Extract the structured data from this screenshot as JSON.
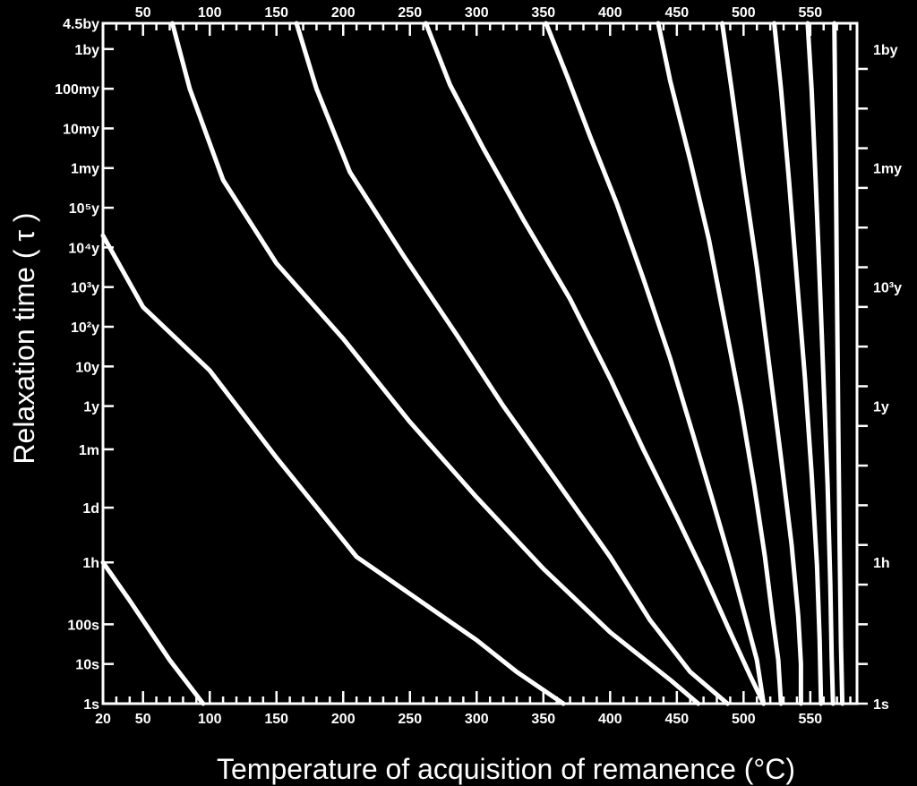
{
  "chart_data": {
    "type": "line",
    "xlabel": "Temperature of acquisition of remanence (°C)",
    "ylabel": "Relaxation time ( τ )",
    "xlim": [
      20,
      585
    ],
    "bottom_x_ticks": [
      20,
      50,
      100,
      150,
      200,
      250,
      300,
      350,
      400,
      450,
      500,
      550
    ],
    "top_x_ticks": [
      50,
      100,
      150,
      200,
      250,
      300,
      350,
      400,
      450,
      500,
      550
    ],
    "left_y_labels": [
      "4.5by",
      "1by",
      "100my",
      "10my",
      "1my",
      "10⁵y",
      "10⁴y",
      "10³y",
      "10²y",
      "10y",
      "1y",
      "1m",
      "1d",
      "1h",
      "100s",
      "10s",
      "1s"
    ],
    "right_y_labels": [
      "1by",
      "1my",
      "10³y",
      "1y",
      "1h",
      "1s"
    ],
    "y_unit": "log10 seconds",
    "y_ticks_log10s": [
      17.15,
      16.5,
      15.5,
      14.5,
      13.5,
      12.5,
      11.5,
      10.5,
      9.5,
      8.5,
      7.5,
      6.41,
      4.94,
      3.56,
      2,
      1,
      0
    ],
    "right_y_ticks_log10s": [
      16.5,
      13.5,
      10.5,
      7.5,
      3.56,
      0
    ],
    "series": [
      {
        "points": [
          [
            20,
            3.56
          ],
          [
            40,
            2.6
          ],
          [
            70,
            1.1
          ],
          [
            95,
            0
          ]
        ]
      },
      {
        "points": [
          [
            20,
            11.8
          ],
          [
            50,
            10
          ],
          [
            100,
            8.4
          ],
          [
            150,
            6.2
          ],
          [
            210,
            3.7
          ],
          [
            300,
            1.6
          ],
          [
            330,
            0.8
          ],
          [
            365,
            0
          ]
        ]
      },
      {
        "points": [
          [
            72,
            17.15
          ],
          [
            85,
            15.5
          ],
          [
            110,
            13.2
          ],
          [
            150,
            11.1
          ],
          [
            200,
            9.2
          ],
          [
            250,
            7.1
          ],
          [
            300,
            5.2
          ],
          [
            350,
            3.4
          ],
          [
            400,
            1.8
          ],
          [
            445,
            0.6
          ],
          [
            466,
            0
          ]
        ]
      },
      {
        "points": [
          [
            165,
            17.15
          ],
          [
            180,
            15.5
          ],
          [
            205,
            13.4
          ],
          [
            245,
            11.3
          ],
          [
            285,
            9.3
          ],
          [
            320,
            7.5
          ],
          [
            360,
            5.6
          ],
          [
            400,
            3.7
          ],
          [
            430,
            2.1
          ],
          [
            460,
            0.8
          ],
          [
            488,
            0
          ]
        ]
      },
      {
        "points": [
          [
            262,
            17.15
          ],
          [
            280,
            15.6
          ],
          [
            305,
            14
          ],
          [
            335,
            12.2
          ],
          [
            370,
            10.2
          ],
          [
            400,
            8.2
          ],
          [
            425,
            6.4
          ],
          [
            450,
            4.7
          ],
          [
            470,
            3.3
          ],
          [
            490,
            1.8
          ],
          [
            505,
            0.7
          ],
          [
            515,
            0
          ]
        ]
      },
      {
        "points": [
          [
            352,
            17.15
          ],
          [
            368,
            15.8
          ],
          [
            385,
            14.3
          ],
          [
            405,
            12.6
          ],
          [
            425,
            10.7
          ],
          [
            445,
            8.7
          ],
          [
            462,
            6.8
          ],
          [
            477,
            5.1
          ],
          [
            490,
            3.6
          ],
          [
            502,
            2.1
          ],
          [
            510,
            1.1
          ],
          [
            515,
            0
          ]
        ]
      },
      {
        "points": [
          [
            436,
            17.15
          ],
          [
            445,
            15.7
          ],
          [
            460,
            13.7
          ],
          [
            474,
            11.7
          ],
          [
            486,
            9.6
          ],
          [
            498,
            7.5
          ],
          [
            508,
            5.5
          ],
          [
            516,
            3.7
          ],
          [
            522,
            2.1
          ],
          [
            526,
            1.1
          ],
          [
            528,
            0
          ]
        ]
      },
      {
        "points": [
          [
            484,
            17.15
          ],
          [
            491,
            15.5
          ],
          [
            500,
            13.3
          ],
          [
            510,
            11
          ],
          [
            519,
            8.6
          ],
          [
            528,
            6.2
          ],
          [
            536,
            4
          ],
          [
            541,
            2.2
          ],
          [
            543,
            1
          ],
          [
            543,
            0
          ]
        ]
      },
      {
        "points": [
          [
            523,
            17.15
          ],
          [
            528,
            15.5
          ],
          [
            534,
            13.2
          ],
          [
            540,
            10.7
          ],
          [
            546,
            8.2
          ],
          [
            551,
            5.8
          ],
          [
            555,
            3.5
          ],
          [
            557,
            1.6
          ],
          [
            558,
            0
          ]
        ]
      },
      {
        "points": [
          [
            548,
            17.15
          ],
          [
            551,
            15.5
          ],
          [
            554,
            13.2
          ],
          [
            557,
            10.7
          ],
          [
            560,
            8.1
          ],
          [
            563,
            5.5
          ],
          [
            565,
            3
          ],
          [
            566,
            1.2
          ],
          [
            567,
            0
          ]
        ]
      },
      {
        "points": [
          [
            568,
            17.15
          ],
          [
            569,
            14
          ],
          [
            570,
            10.5
          ],
          [
            571,
            7
          ],
          [
            572,
            4
          ],
          [
            573,
            1.5
          ],
          [
            574,
            0
          ]
        ]
      }
    ]
  }
}
